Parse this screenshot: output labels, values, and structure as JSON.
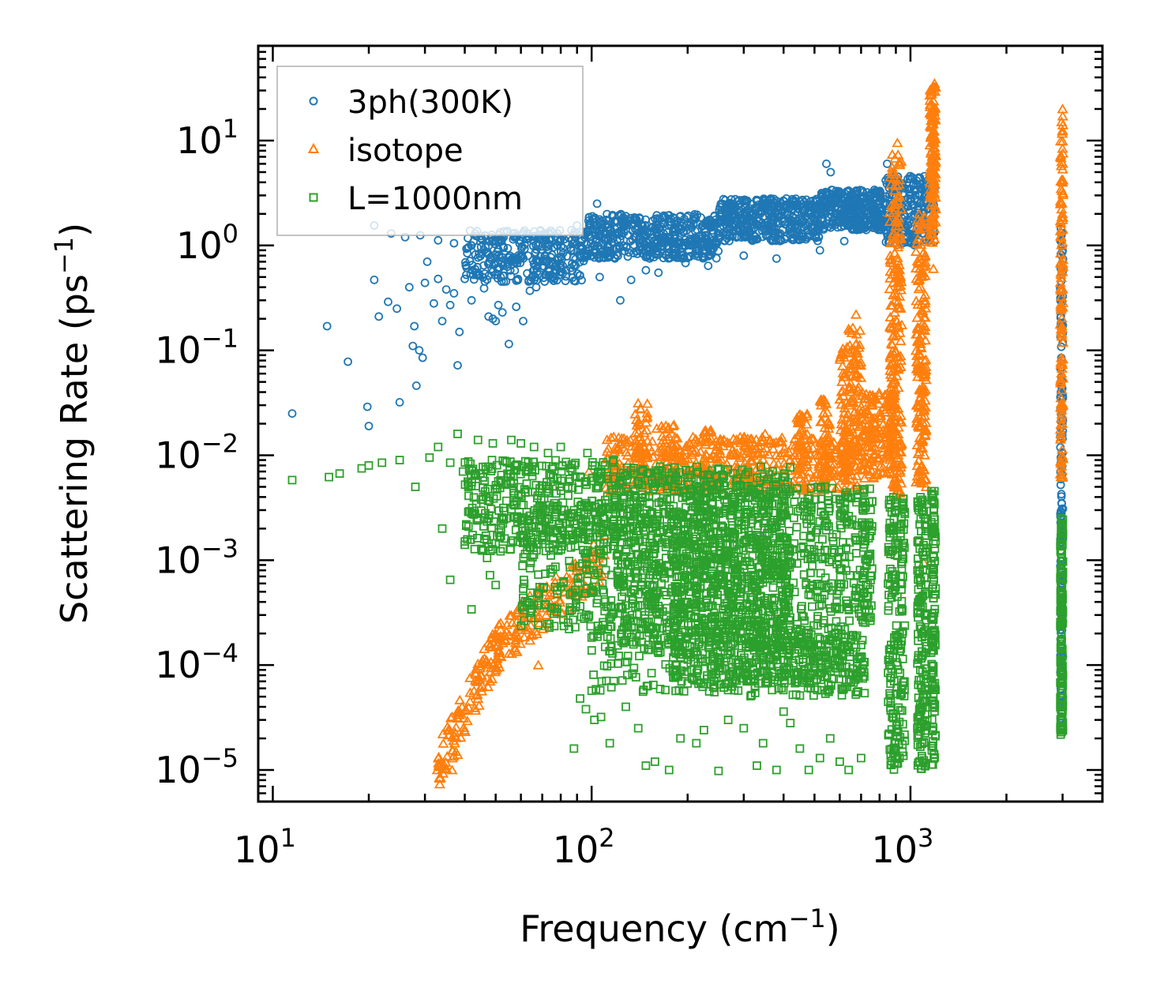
{
  "chart_data": {
    "type": "scatter",
    "title": "",
    "x_scale": "log",
    "y_scale": "log",
    "xlim": [
      9,
      4000
    ],
    "ylim": [
      5e-06,
      80
    ],
    "xlabel": {
      "main": "Frequency (cm",
      "sup": "−1",
      "tail": ")"
    },
    "ylabel": {
      "main": "Scattering Rate (ps",
      "sup": "−1",
      "tail": ")"
    },
    "x_ticks": [
      {
        "value": 10,
        "base": "10",
        "exp": "1"
      },
      {
        "value": 100,
        "base": "10",
        "exp": "2"
      },
      {
        "value": 1000,
        "base": "10",
        "exp": "3"
      }
    ],
    "y_ticks": [
      {
        "value": 10,
        "base": "10",
        "exp": "1"
      },
      {
        "value": 1,
        "base": "10",
        "exp": "0"
      },
      {
        "value": 0.1,
        "base": "10",
        "exp": "−1"
      },
      {
        "value": 0.01,
        "base": "10",
        "exp": "−2"
      },
      {
        "value": 0.001,
        "base": "10",
        "exp": "−3"
      },
      {
        "value": 0.0001,
        "base": "10",
        "exp": "−4"
      },
      {
        "value": 1e-05,
        "base": "10",
        "exp": "−5"
      }
    ],
    "legend_position": "top-left",
    "series": [
      {
        "name": "3ph(300K)",
        "marker": "circle",
        "color": "#1f77b4",
        "points": [
          [
            11.5,
            0.025
          ],
          [
            14.8,
            0.17
          ],
          [
            17.2,
            0.078
          ],
          [
            19.8,
            0.029
          ],
          [
            20.0,
            0.019
          ],
          [
            20.8,
            0.47
          ],
          [
            21.5,
            0.21
          ],
          [
            23.0,
            0.29
          ],
          [
            24.5,
            0.25
          ],
          [
            25.0,
            0.032
          ],
          [
            26.8,
            0.4
          ],
          [
            27.5,
            0.11
          ],
          [
            27.8,
            0.17
          ],
          [
            28.2,
            0.046
          ],
          [
            28.8,
            0.1
          ],
          [
            29.5,
            0.085
          ],
          [
            30.0,
            0.44
          ],
          [
            30.5,
            0.7
          ],
          [
            32.0,
            0.28
          ],
          [
            33.0,
            0.48
          ],
          [
            34.0,
            0.19
          ],
          [
            35.0,
            0.38
          ],
          [
            36.0,
            0.27
          ],
          [
            37.0,
            0.35
          ],
          [
            38.0,
            0.072
          ],
          [
            38.5,
            0.15
          ],
          [
            40.0,
            0.48
          ],
          [
            42.0,
            0.3
          ],
          [
            44.0,
            0.52
          ],
          [
            46.0,
            0.39
          ],
          [
            47.5,
            0.21
          ],
          [
            49.0,
            0.2
          ],
          [
            50.0,
            0.19
          ],
          [
            51.0,
            0.27
          ],
          [
            52.5,
            0.23
          ],
          [
            55.0,
            0.115
          ],
          [
            58.0,
            0.26
          ],
          [
            61.0,
            0.19
          ],
          [
            64.0,
            0.37
          ],
          [
            67.0,
            0.4
          ],
          [
            74.0,
            0.52
          ],
          [
            88.0,
            0.46
          ],
          [
            106.0,
            0.5
          ],
          [
            123.0,
            0.3
          ],
          [
            133.0,
            0.47
          ],
          [
            148.0,
            0.58
          ],
          [
            162.0,
            0.55
          ],
          [
            197.0,
            0.68
          ],
          [
            232.0,
            0.64
          ],
          [
            300.0,
            0.8
          ],
          [
            380.0,
            0.75
          ],
          [
            520.0,
            0.9
          ],
          [
            620.0,
            1.1
          ],
          [
            720.0,
            1.5
          ],
          [
            840.0,
            1.4
          ],
          [
            1010.0,
            1.05
          ],
          [
            1100.0,
            1.3
          ],
          [
            1150.0,
            1.12
          ],
          [
            1180.0,
            1.4
          ],
          [
            20.8,
            1.55
          ],
          [
            23.5,
            1.3
          ],
          [
            26.0,
            1.2
          ],
          [
            29.0,
            1.25
          ],
          [
            33.0,
            1.12
          ],
          [
            37.0,
            1.05
          ],
          [
            42.0,
            1.0
          ],
          [
            46.0,
            0.9
          ],
          [
            53.0,
            0.95
          ],
          [
            60.0,
            1.1
          ],
          [
            68.0,
            1.2
          ],
          [
            78.0,
            1.3
          ],
          [
            90.0,
            1.55
          ],
          [
            104.0,
            2.5
          ],
          [
            545.0,
            6.0
          ],
          [
            562.0,
            5.0
          ],
          [
            845.0,
            6.0
          ],
          [
            1070.0,
            3.6
          ],
          [
            1120.0,
            4.0
          ],
          [
            1180.0,
            2.2
          ]
        ],
        "bands": [
          {
            "x": [
              40,
              95
            ],
            "y": [
              0.45,
              1.4
            ],
            "n": 320
          },
          {
            "x": [
              95,
              250
            ],
            "y": [
              0.75,
              2.0
            ],
            "n": 480
          },
          {
            "x": [
              250,
              520
            ],
            "y": [
              1.1,
              2.8
            ],
            "n": 420
          },
          {
            "x": [
              520,
              820
            ],
            "y": [
              1.4,
              3.4
            ],
            "n": 320
          },
          {
            "x": [
              820,
              1190
            ],
            "y": [
              1.0,
              4.6
            ],
            "n": 260
          }
        ],
        "columns": [
          {
            "x": [
              2950,
              3010
            ],
            "y": [
              3e-05,
              1.5
            ],
            "n": 150
          }
        ]
      },
      {
        "name": "isotope",
        "marker": "triangle",
        "color": "#ff7f0e",
        "points": [
          [
            32.8,
            1e-05
          ],
          [
            34.0,
            1.1e-05
          ],
          [
            36.5,
            1e-05
          ],
          [
            38.0,
            1.4e-05
          ],
          [
            44.0,
            7.3e-05
          ],
          [
            48.0,
            7e-05
          ],
          [
            52.0,
            0.00012
          ],
          [
            68.0,
            0.0001
          ],
          [
            72.0,
            0.0003
          ],
          [
            64.0,
            0.00046
          ],
          [
            82.0,
            0.00055
          ],
          [
            98.0,
            0.007
          ],
          [
            142.0,
            0.028
          ],
          [
            160.0,
            0.018
          ],
          [
            175.0,
            0.015
          ],
          [
            198.0,
            0.012
          ],
          [
            270.0,
            0.013
          ],
          [
            350.0,
            0.016
          ],
          [
            462.0,
            0.023
          ],
          [
            525.0,
            0.03
          ],
          [
            640.0,
            0.16
          ],
          [
            675.0,
            0.22
          ],
          [
            910.0,
            9.5
          ],
          [
            1190.0,
            35.0
          ],
          [
            1180.0,
            0.6
          ],
          [
            1120.0,
            0.005
          ],
          [
            1100.0,
            0.00095
          ],
          [
            3000.0,
            20.0
          ]
        ],
        "bands": [
          {
            "x": [
              33,
              52
            ],
            "y": [
              1.1e-05,
              0.00018
            ],
            "n": 120,
            "trend": true
          },
          {
            "x": [
              50,
              110
            ],
            "y": [
              0.00015,
              0.0011
            ],
            "n": 150,
            "trend": true
          },
          {
            "x": [
              110,
              700
            ],
            "y": [
              0.0045,
              0.015
            ],
            "n": 520
          },
          {
            "x": [
              700,
              880
            ],
            "y": [
              0.006,
              0.04
            ],
            "n": 160
          }
        ],
        "columns": [
          {
            "x": [
              135,
              150
            ],
            "y": [
              0.005,
              0.032
            ],
            "n": 40
          },
          {
            "x": [
              165,
              185
            ],
            "y": [
              0.005,
              0.022
            ],
            "n": 40
          },
          {
            "x": [
              225,
              240
            ],
            "y": [
              0.005,
              0.018
            ],
            "n": 30
          },
          {
            "x": [
              300,
              320
            ],
            "y": [
              0.005,
              0.015
            ],
            "n": 30
          },
          {
            "x": [
              440,
              480
            ],
            "y": [
              0.006,
              0.025
            ],
            "n": 40
          },
          {
            "x": [
              520,
              560
            ],
            "y": [
              0.006,
              0.035
            ],
            "n": 40
          },
          {
            "x": [
              600,
              640
            ],
            "y": [
              0.007,
              0.11
            ],
            "n": 60
          },
          {
            "x": [
              640,
              700
            ],
            "y": [
              0.008,
              0.17
            ],
            "n": 80
          },
          {
            "x": [
              860,
              940
            ],
            "y": [
              0.004,
              8.0
            ],
            "n": 240
          },
          {
            "x": [
              1040,
              1120
            ],
            "y": [
              0.005,
              2.0
            ],
            "n": 180
          },
          {
            "x": [
              1150,
              1200
            ],
            "y": [
              1.0,
              34.0
            ],
            "n": 150
          },
          {
            "x": [
              2950,
              3010
            ],
            "y": [
              0.006,
              18.0
            ],
            "n": 130
          }
        ]
      },
      {
        "name": "L=1000nm",
        "marker": "square",
        "color": "#2ca02c",
        "points": [
          [
            11.5,
            0.0058
          ],
          [
            15.0,
            0.0062
          ],
          [
            16.2,
            0.0067
          ],
          [
            19.0,
            0.0075
          ],
          [
            20.0,
            0.008
          ],
          [
            22.0,
            0.0085
          ],
          [
            25.0,
            0.009
          ],
          [
            28.0,
            0.005
          ],
          [
            31.0,
            0.0095
          ],
          [
            33.0,
            0.012
          ],
          [
            36.0,
            0.0085
          ],
          [
            38.0,
            0.016
          ],
          [
            39.5,
            0.007
          ],
          [
            44.0,
            0.014
          ],
          [
            49.0,
            0.013
          ],
          [
            56.0,
            0.014
          ],
          [
            60.0,
            0.013
          ],
          [
            66.0,
            0.012
          ],
          [
            73.0,
            0.0105
          ],
          [
            80.0,
            0.012
          ],
          [
            97.0,
            0.0105
          ],
          [
            34.0,
            0.002
          ],
          [
            40.0,
            0.0014
          ],
          [
            42.0,
            0.00034
          ],
          [
            36.0,
            0.00065
          ],
          [
            48.0,
            0.00072
          ],
          [
            50.0,
            0.00058
          ],
          [
            47.0,
            0.00105
          ],
          [
            88.0,
            1.6e-05
          ],
          [
            92.0,
            4.8e-05
          ],
          [
            96.0,
            3.8e-05
          ],
          [
            102.0,
            3e-05
          ],
          [
            107.0,
            3.2e-05
          ],
          [
            114.0,
            1.8e-05
          ],
          [
            128.0,
            4e-05
          ],
          [
            140.0,
            2.5e-05
          ],
          [
            148.0,
            1.1e-05
          ],
          [
            158.0,
            1.2e-05
          ],
          [
            175.0,
            1e-05
          ],
          [
            190.0,
            2e-05
          ],
          [
            213.0,
            1.8e-05
          ],
          [
            225.0,
            2.4e-05
          ],
          [
            250.0,
            9.8e-06
          ],
          [
            268.0,
            3e-05
          ],
          [
            300.0,
            2.5e-05
          ],
          [
            330.0,
            1.1e-05
          ],
          [
            345.0,
            1.8e-05
          ],
          [
            380.0,
            1e-05
          ],
          [
            400.0,
            3.6e-05
          ],
          [
            420.0,
            2.8e-05
          ],
          [
            450.0,
            1.6e-05
          ],
          [
            480.0,
            1e-05
          ],
          [
            520.0,
            1.3e-05
          ],
          [
            560.0,
            2e-05
          ],
          [
            600.0,
            1.2e-05
          ],
          [
            640.0,
            1e-05
          ],
          [
            700.0,
            1.3e-05
          ]
        ],
        "bands": [
          {
            "x": [
              40,
              120
            ],
            "y": [
              0.0012,
              0.009
            ],
            "n": 380
          },
          {
            "x": [
              60,
              160
            ],
            "y": [
              0.00022,
              0.0035
            ],
            "n": 300
          },
          {
            "x": [
              120,
              420
            ],
            "y": [
              0.00015,
              0.008
            ],
            "n": 900
          },
          {
            "x": [
              180,
              720
            ],
            "y": [
              6.5e-05,
              0.0052
            ],
            "n": 900
          },
          {
            "x": [
              100,
              300
            ],
            "y": [
              5.5e-05,
              0.00025
            ],
            "n": 160
          },
          {
            "x": [
              300,
              720
            ],
            "y": [
              5e-05,
              0.0002
            ],
            "n": 180
          }
        ],
        "columns": [
          {
            "x": [
              710,
              760
            ],
            "y": [
              0.0002,
              0.005
            ],
            "n": 60
          },
          {
            "x": [
              850,
              960
            ],
            "y": [
              1e-05,
              0.004
            ],
            "n": 200
          },
          {
            "x": [
              1050,
              1130
            ],
            "y": [
              1e-05,
              0.004
            ],
            "n": 160
          },
          {
            "x": [
              1160,
              1200
            ],
            "y": [
              1e-05,
              0.0055
            ],
            "n": 120
          },
          {
            "x": [
              2950,
              3010
            ],
            "y": [
              2e-05,
              0.0025
            ],
            "n": 150
          }
        ]
      }
    ]
  }
}
